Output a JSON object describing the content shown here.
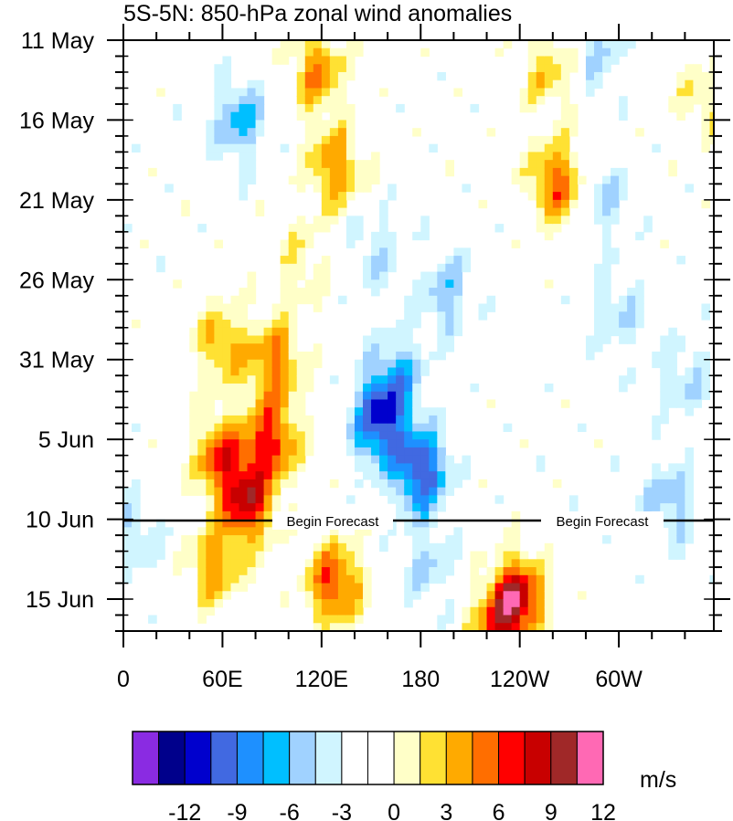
{
  "chart_data": {
    "type": "heatmap",
    "title": "5S-5N: 850-hPa zonal wind anomalies",
    "x_tick_labels": [
      "0",
      "60E",
      "120E",
      "180",
      "120W",
      "60W"
    ],
    "x_tick_longitudes": [
      0,
      60,
      120,
      180,
      240,
      300
    ],
    "x_range": [
      0,
      357.5
    ],
    "y_tick_labels": [
      "11 May",
      "16 May",
      "21 May",
      "26 May",
      "31 May",
      "5 Jun",
      "10 Jun",
      "15 Jun"
    ],
    "y_tick_days": [
      0,
      5,
      10,
      15,
      20,
      25,
      30,
      35
    ],
    "y_range_days": [
      0,
      37
    ],
    "forecast": {
      "label_1": "Begin Forecast",
      "label_2": "Begin Forecast",
      "day": 30
    },
    "colorbar": {
      "units": "m/s",
      "tick_labels": [
        "-12",
        "-9",
        "-6",
        "-3",
        "0",
        "3",
        "6",
        "9",
        "12"
      ],
      "colors": [
        "#8a2be2",
        "#00008b",
        "#0000cd",
        "#4169e1",
        "#1e90ff",
        "#00bfff",
        "#a0d2ff",
        "#d0f5ff",
        "#ffffff",
        "#ffffff",
        "#ffffc8",
        "#ffe133",
        "#ffaa00",
        "#ff6e00",
        "#ff0000",
        "#c80000",
        "#a02828",
        "#ff69b4"
      ]
    },
    "anomaly_centers": [
      {
        "lon": 75,
        "day": 29,
        "amp": 9
      },
      {
        "lon": 90,
        "day": 25,
        "amp": 8
      },
      {
        "lon": 58,
        "day": 26,
        "amp": 7
      },
      {
        "lon": 92,
        "day": 20,
        "amp": 6
      },
      {
        "lon": 60,
        "day": 19,
        "amp": 5
      },
      {
        "lon": 118,
        "day": 2,
        "amp": 6
      },
      {
        "lon": 128,
        "day": 8,
        "amp": 6
      },
      {
        "lon": 55,
        "day": 33,
        "amp": 5
      },
      {
        "lon": 128,
        "day": 34,
        "amp": 8
      },
      {
        "lon": 108,
        "day": 14,
        "amp": 3
      },
      {
        "lon": 238,
        "day": 35,
        "amp": 10
      },
      {
        "lon": 225,
        "day": 37,
        "amp": 6
      },
      {
        "lon": 262,
        "day": 9,
        "amp": 7
      },
      {
        "lon": 258,
        "day": 2,
        "amp": 4
      },
      {
        "lon": 350,
        "day": 4,
        "amp": 3
      },
      {
        "lon": 155,
        "day": 24,
        "amp": -9
      },
      {
        "lon": 180,
        "day": 27,
        "amp": -9
      },
      {
        "lon": 165,
        "day": 21,
        "amp": -5
      },
      {
        "lon": 195,
        "day": 16,
        "amp": -4
      },
      {
        "lon": 70,
        "day": 5,
        "amp": -5
      },
      {
        "lon": 150,
        "day": 13,
        "amp": -3
      },
      {
        "lon": 300,
        "day": 17,
        "amp": -3
      },
      {
        "lon": 290,
        "day": 10,
        "amp": -3
      },
      {
        "lon": 288,
        "day": 1,
        "amp": -3
      },
      {
        "lon": 330,
        "day": 29,
        "amp": -4
      },
      {
        "lon": 8,
        "day": 31,
        "amp": -3
      },
      {
        "lon": 340,
        "day": 21,
        "amp": -3
      },
      {
        "lon": 185,
        "day": 33,
        "amp": -3
      }
    ]
  }
}
